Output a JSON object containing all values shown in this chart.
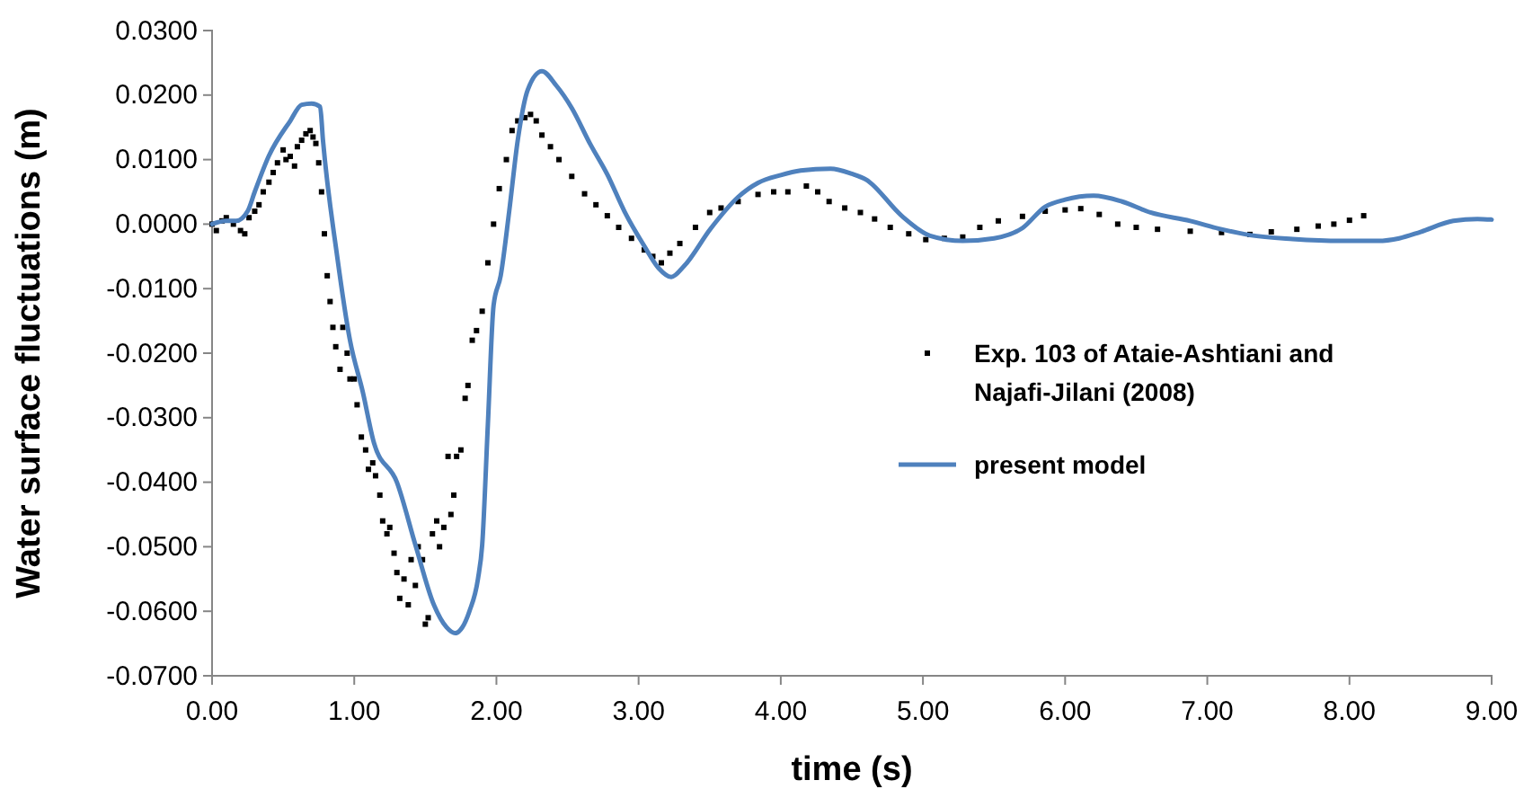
{
  "chart_data": {
    "type": "line",
    "xlabel": "time (s)",
    "ylabel": "Water surface fluctuations (m)",
    "xlim": [
      0,
      9
    ],
    "xticks": [
      {
        "value": 0,
        "label": "0.00"
      },
      {
        "value": 1,
        "label": "1.00"
      },
      {
        "value": 2,
        "label": "2.00"
      },
      {
        "value": 3,
        "label": "3.00"
      },
      {
        "value": 4,
        "label": "4.00"
      },
      {
        "value": 5,
        "label": "5.00"
      },
      {
        "value": 6,
        "label": "6.00"
      },
      {
        "value": 7,
        "label": "7.00"
      },
      {
        "value": 8,
        "label": "8.00"
      },
      {
        "value": 9,
        "label": "9.00"
      }
    ],
    "ylim": [
      -0.07,
      0.03
    ],
    "yticks": [
      {
        "value": -0.07,
        "label": "-0.0700"
      },
      {
        "value": -0.06,
        "label": "-0.0600"
      },
      {
        "value": -0.05,
        "label": "-0.0500"
      },
      {
        "value": -0.04,
        "label": "-0.0400"
      },
      {
        "value": -0.03,
        "label": "-0.0300"
      },
      {
        "value": -0.02,
        "label": "-0.0200"
      },
      {
        "value": -0.01,
        "label": "-0.0100"
      },
      {
        "value": 0,
        "label": "0.0000"
      },
      {
        "value": 0.01,
        "label": "0.0100"
      },
      {
        "value": 0.02,
        "label": "0.0200"
      },
      {
        "value": 0.03,
        "label": "0.0300"
      }
    ],
    "grid": false,
    "legend": "right",
    "line_style": "solid",
    "series": [
      {
        "name": "Exp. 103 of Ataie-Ashtiani and Najafi-Jilani (2008)",
        "type": "scatter",
        "marker": "square",
        "color": "#000000",
        "x": [
          0,
          0.03,
          0.07,
          0.1,
          0.15,
          0.2,
          0.23,
          0.26,
          0.3,
          0.33,
          0.36,
          0.4,
          0.43,
          0.46,
          0.5,
          0.52,
          0.55,
          0.58,
          0.6,
          0.63,
          0.66,
          0.69,
          0.71,
          0.73,
          0.75,
          0.77,
          0.79,
          0.81,
          0.83,
          0.85,
          0.87,
          0.9,
          0.92,
          0.95,
          0.97,
          1.0,
          1.02,
          1.05,
          1.08,
          1.1,
          1.13,
          1.15,
          1.18,
          1.2,
          1.23,
          1.25,
          1.28,
          1.3,
          1.32,
          1.35,
          1.38,
          1.4,
          1.43,
          1.45,
          1.48,
          1.5,
          1.52,
          1.55,
          1.58,
          1.6,
          1.63,
          1.66,
          1.68,
          1.7,
          1.72,
          1.75,
          1.78,
          1.8,
          1.83,
          1.86,
          1.9,
          1.94,
          1.98,
          2.02,
          2.07,
          2.11,
          2.15,
          2.2,
          2.24,
          2.28,
          2.32,
          2.38,
          2.44,
          2.53,
          2.62,
          2.7,
          2.78,
          2.86,
          2.95,
          3.04,
          3.1,
          3.16,
          3.22,
          3.29,
          3.4,
          3.5,
          3.58,
          3.7,
          3.84,
          3.95,
          4.05,
          4.18,
          4.26,
          4.34,
          4.45,
          4.56,
          4.66,
          4.77,
          4.9,
          5.02,
          5.15,
          5.28,
          5.4,
          5.53,
          5.7,
          5.86,
          6.0,
          6.11,
          6.24,
          6.37,
          6.5,
          6.65,
          6.88,
          7.1,
          7.3,
          7.45,
          7.63,
          7.78,
          7.89,
          8.0,
          8.1
        ],
        "values": [
          0,
          -0.001,
          0.0005,
          0.001,
          0,
          -0.001,
          -0.0015,
          0.001,
          0.002,
          0.003,
          0.005,
          0.0065,
          0.008,
          0.0095,
          0.0115,
          0.01,
          0.0105,
          0.009,
          0.012,
          0.013,
          0.014,
          0.0145,
          0.0135,
          0.0125,
          0.0095,
          0.005,
          -0.0015,
          -0.008,
          -0.012,
          -0.016,
          -0.019,
          -0.0225,
          -0.016,
          -0.02,
          -0.024,
          -0.024,
          -0.028,
          -0.033,
          -0.035,
          -0.038,
          -0.037,
          -0.039,
          -0.042,
          -0.046,
          -0.048,
          -0.047,
          -0.051,
          -0.054,
          -0.058,
          -0.055,
          -0.059,
          -0.052,
          -0.056,
          -0.05,
          -0.052,
          -0.062,
          -0.061,
          -0.048,
          -0.046,
          -0.05,
          -0.047,
          -0.036,
          -0.045,
          -0.042,
          -0.036,
          -0.035,
          -0.027,
          -0.025,
          -0.018,
          -0.0165,
          -0.0135,
          -0.006,
          0,
          0.0055,
          0.01,
          0.0145,
          0.016,
          0.0165,
          0.017,
          0.016,
          0.0138,
          0.012,
          0.01,
          0.0074,
          0.0047,
          0.003,
          0.0013,
          -0.0005,
          -0.0022,
          -0.004,
          -0.005,
          -0.006,
          -0.0045,
          -0.003,
          -0.0005,
          0.0018,
          0.0025,
          0.0035,
          0.0046,
          0.005,
          0.005,
          0.0059,
          0.005,
          0.0035,
          0.0025,
          0.0018,
          0.0008,
          -0.0005,
          -0.0015,
          -0.0024,
          -0.0022,
          -0.002,
          -0.0005,
          0.0005,
          0.0012,
          0.002,
          0.0022,
          0.0024,
          0.0015,
          0,
          -0.0005,
          -0.0008,
          -0.0011,
          -0.0013,
          -0.0016,
          -0.0012,
          -0.0008,
          -0.0003,
          0,
          0.0006,
          0.0013
        ]
      },
      {
        "name": "present model",
        "marker": "none",
        "color": "#4f81bd",
        "x": [
          0,
          0.1,
          0.17,
          0.25,
          0.3,
          0.4,
          0.55,
          0.63,
          0.7,
          0.76,
          0.78,
          0.88,
          0.97,
          1.06,
          1.14,
          1.3,
          1.43,
          1.56,
          1.65,
          1.71,
          1.76,
          1.81,
          1.87,
          1.9,
          1.94,
          1.98,
          2.03,
          2.09,
          2.15,
          2.22,
          2.32,
          2.42,
          2.53,
          2.66,
          2.78,
          2.9,
          3.04,
          3.14,
          3.23,
          3.32,
          3.51,
          3.7,
          3.84,
          4.0,
          4.14,
          4.35,
          4.5,
          4.6,
          4.85,
          5.05,
          5.28,
          5.5,
          5.7,
          5.86,
          6.0,
          6.2,
          6.4,
          6.6,
          6.88,
          7.1,
          7.3,
          7.6,
          7.94,
          8.2,
          8.35,
          8.5,
          8.73,
          8.9,
          9.0
        ],
        "values": [
          0,
          0.0005,
          0.0005,
          0.002,
          0.005,
          0.0106,
          0.016,
          0.0185,
          0.0187,
          0.0182,
          0.013,
          -0.005,
          -0.018,
          -0.026,
          -0.034,
          -0.04,
          -0.0497,
          -0.059,
          -0.0625,
          -0.0634,
          -0.0625,
          -0.06,
          -0.055,
          -0.0497,
          -0.031,
          -0.0126,
          -0.008,
          0.002,
          0.013,
          0.0208,
          0.0237,
          0.0215,
          0.018,
          0.0124,
          0.0077,
          0.002,
          -0.0034,
          -0.0068,
          -0.0082,
          -0.0065,
          -0.0006,
          0.0042,
          0.0064,
          0.0076,
          0.0083,
          0.0086,
          0.0078,
          0.0069,
          0.0013,
          -0.0018,
          -0.0026,
          -0.0022,
          -0.0006,
          0.0027,
          0.0038,
          0.0044,
          0.0035,
          0.0018,
          0.0005,
          -0.0008,
          -0.0017,
          -0.0023,
          -0.0026,
          -0.0026,
          -0.0022,
          -0.0012,
          0.0005,
          0.0008,
          0.0007
        ]
      }
    ]
  }
}
